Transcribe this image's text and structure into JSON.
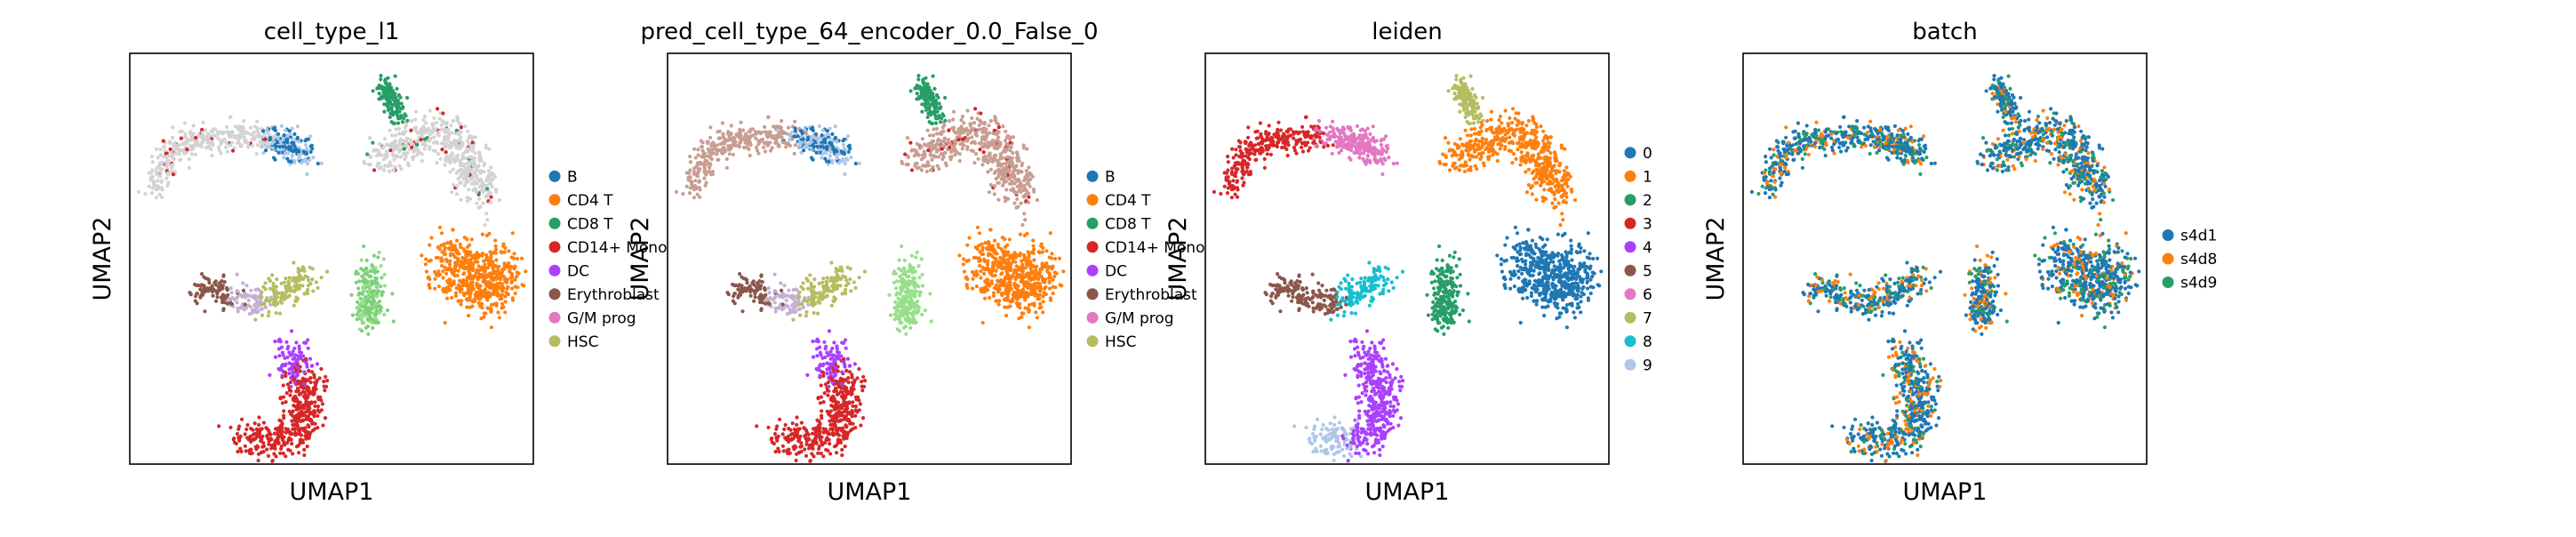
{
  "figure": {
    "description_type": "UMAP embedding panels"
  },
  "colors": {
    "tab10": [
      "#1f77b4",
      "#ff7f0e",
      "#279e68",
      "#d62728",
      "#aa40fc",
      "#8c564b",
      "#e377c2",
      "#b5bd61",
      "#17becf",
      "#aec7e8"
    ],
    "unlabeled": "#d3d3d3",
    "pred_unlabeled": "#c89d92"
  },
  "chart_data": [
    {
      "type": "scatter",
      "title": "cell_type_l1",
      "xlabel": "UMAP1",
      "ylabel": "UMAP2",
      "grid": false,
      "legend_position": "right",
      "legend": [
        "B",
        "CD4 T",
        "CD8 T",
        "CD14+ Mono",
        "DC",
        "Erythroblast",
        "G/M prog",
        "HSC"
      ],
      "legend_colors": [
        "#1f77b4",
        "#ff7f0e",
        "#279e68",
        "#d62728",
        "#aa40fc",
        "#8c564b",
        "#e377c2",
        "#b5bd61"
      ],
      "coloring": "celltype"
    },
    {
      "type": "scatter",
      "title": "pred_cell_type_64_encoder_0.0_False_0",
      "xlabel": "UMAP1",
      "ylabel": "UMAP2",
      "grid": false,
      "legend_position": "right",
      "legend": [
        "B",
        "CD4 T",
        "CD8 T",
        "CD14+ Mono",
        "DC",
        "Erythroblast",
        "G/M prog",
        "HSC"
      ],
      "legend_colors": [
        "#1f77b4",
        "#ff7f0e",
        "#279e68",
        "#d62728",
        "#aa40fc",
        "#8c564b",
        "#e377c2",
        "#b5bd61"
      ],
      "coloring": "pred"
    },
    {
      "type": "scatter",
      "title": "leiden",
      "xlabel": "UMAP1",
      "ylabel": "UMAP2",
      "grid": false,
      "legend_position": "right",
      "legend": [
        "0",
        "1",
        "2",
        "3",
        "4",
        "5",
        "6",
        "7",
        "8",
        "9"
      ],
      "legend_colors": [
        "#1f77b4",
        "#ff7f0e",
        "#279e68",
        "#d62728",
        "#aa40fc",
        "#8c564b",
        "#e377c2",
        "#b5bd61",
        "#17becf",
        "#aec7e8"
      ],
      "coloring": "leiden"
    },
    {
      "type": "scatter",
      "title": "batch",
      "xlabel": "UMAP1",
      "ylabel": "UMAP2",
      "grid": false,
      "legend_position": "right",
      "legend": [
        "s4d1",
        "s4d8",
        "s4d9"
      ],
      "legend_colors": [
        "#1f77b4",
        "#ff7f0e",
        "#279e68"
      ],
      "coloring": "batch"
    }
  ]
}
